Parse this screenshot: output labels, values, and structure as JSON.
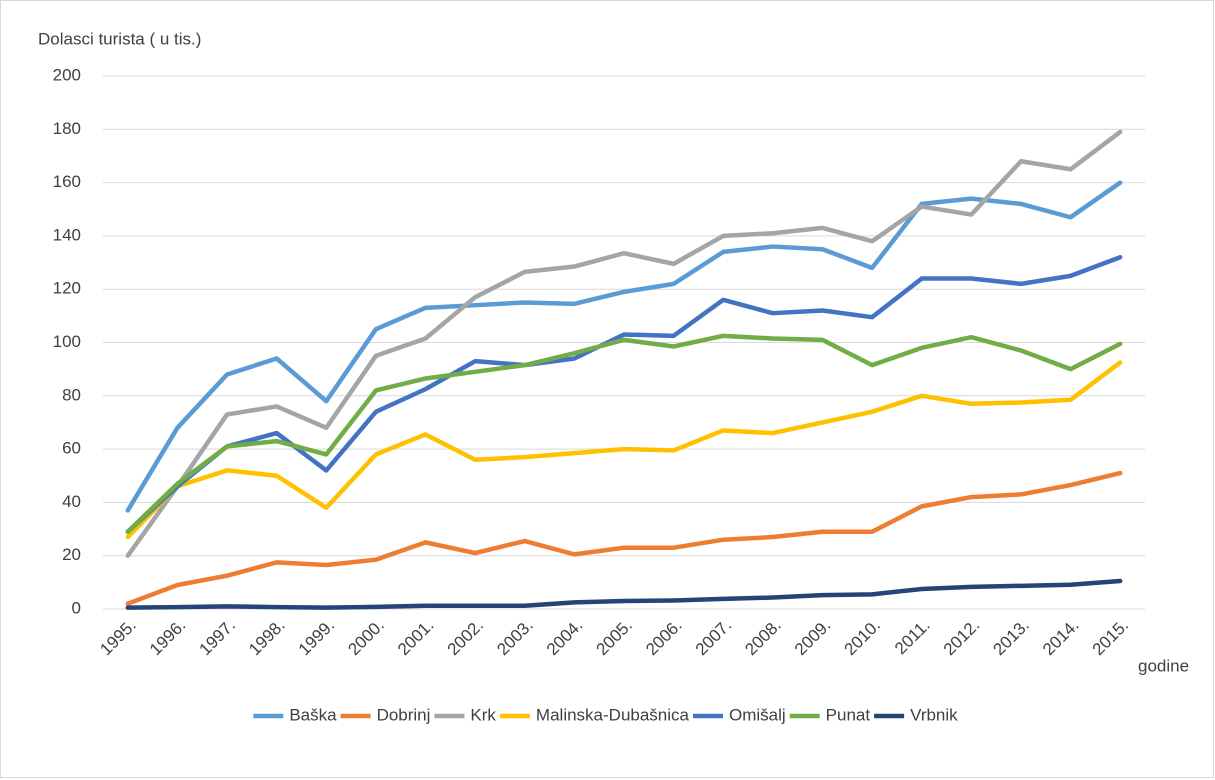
{
  "chart_data": {
    "type": "line",
    "y_label": "Dolasci turista ( u tis.)",
    "x_label": "godine",
    "categories": [
      "1995.",
      "1996.",
      "1997.",
      "1998.",
      "1999.",
      "2000.",
      "2001.",
      "2002.",
      "2003.",
      "2004.",
      "2005.",
      "2006.",
      "2007.",
      "2008.",
      "2009.",
      "2010.",
      "2011.",
      "2012.",
      "2013.",
      "2014.",
      "2015."
    ],
    "series": [
      {
        "name": "Baška",
        "color": "#5b9bd5",
        "values": [
          37,
          68,
          88,
          94,
          78,
          105,
          113,
          114,
          115,
          114.5,
          119,
          122,
          134,
          136,
          135,
          128,
          152,
          154,
          152,
          147,
          160
        ]
      },
      {
        "name": "Dobrinj",
        "color": "#ed7d31",
        "values": [
          2,
          9,
          12.5,
          17.5,
          16.5,
          18.5,
          25,
          21,
          25.5,
          20.5,
          23,
          23,
          26,
          27,
          29,
          29,
          38.5,
          42,
          43,
          46.5,
          51
        ]
      },
      {
        "name": "Krk",
        "color": "#a5a5a5",
        "values": [
          20,
          46,
          73,
          76,
          68,
          95,
          101.5,
          117,
          126.5,
          128.5,
          133.5,
          129.5,
          140,
          141,
          143,
          138,
          151,
          148,
          168,
          165,
          179
        ]
      },
      {
        "name": "Malinska-Dubašnica",
        "color": "#ffc000",
        "values": [
          27,
          46,
          52,
          50,
          38,
          58,
          65.5,
          56,
          57,
          58.5,
          60,
          59.5,
          67,
          66,
          70,
          74,
          80,
          77,
          77.5,
          78.5,
          92.5
        ]
      },
      {
        "name": "Omišalj",
        "color": "#4472c4",
        "values": [
          29,
          46,
          61,
          66,
          52,
          74,
          82.5,
          93,
          91.5,
          94,
          103,
          102.5,
          116,
          111,
          112,
          109.5,
          124,
          124,
          122,
          125,
          132
        ]
      },
      {
        "name": "Punat",
        "color": "#70ad47",
        "values": [
          29,
          47,
          61,
          63,
          58,
          82,
          86.5,
          89,
          91.5,
          96,
          101,
          98.5,
          102.5,
          101.5,
          101,
          91.5,
          98,
          102,
          97,
          90,
          99.5
        ]
      },
      {
        "name": "Vrbnik",
        "color": "#264478",
        "values": [
          0.5,
          0.7,
          1,
          0.7,
          0.5,
          0.8,
          1.2,
          1.2,
          1.2,
          2.5,
          3,
          3.2,
          3.8,
          4.3,
          5.2,
          5.5,
          7.5,
          8.3,
          8.7,
          9.1,
          10.5
        ]
      }
    ],
    "ylim": [
      0,
      200
    ],
    "yticks": [
      0,
      20,
      40,
      60,
      80,
      100,
      120,
      140,
      160,
      180,
      200
    ],
    "grid": true,
    "legend": "bottom"
  }
}
